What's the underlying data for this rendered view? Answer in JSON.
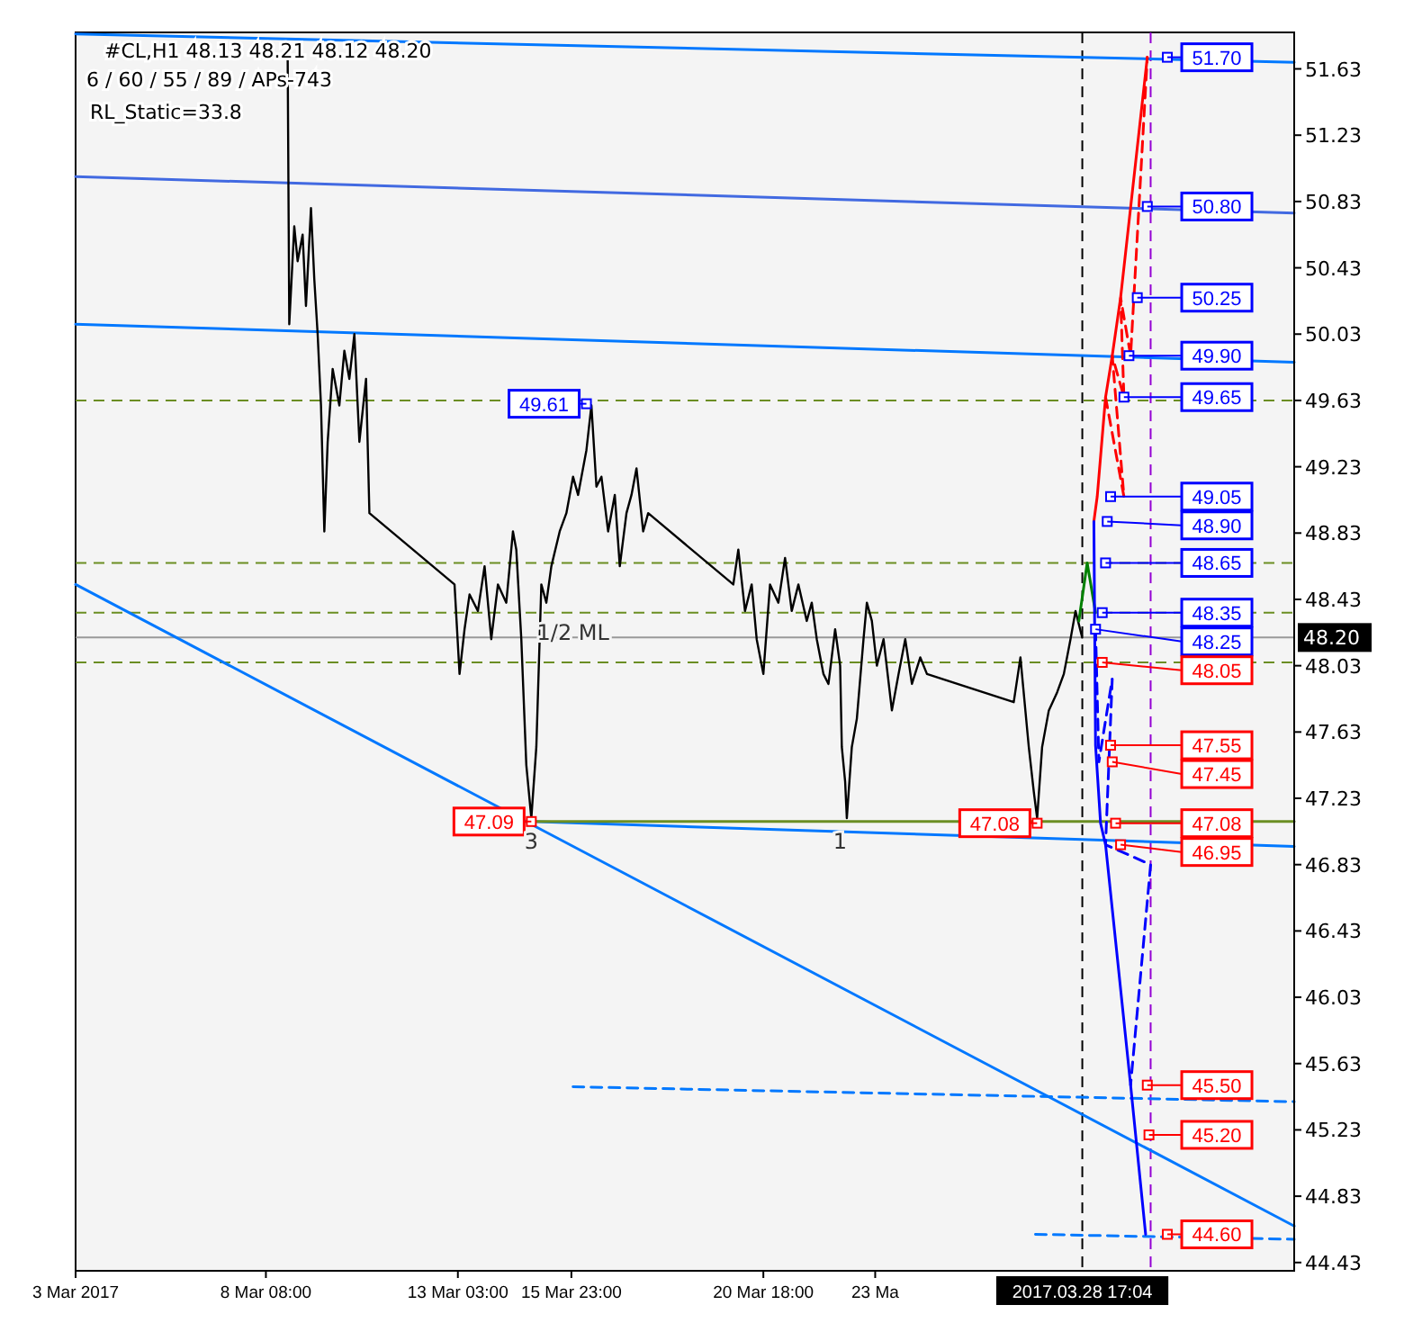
{
  "chart_data": {
    "type": "line",
    "title": "#CL,H1  48.13 48.21 48.12 48.20",
    "subtitle": "6 / 60 / 55 / 89 / APs-743",
    "annotations": [
      "RL_Static=33.8",
      {
        "text": "1/2 ML",
        "x": "2017-03-16T00:00",
        "y": 48.35
      },
      {
        "text": "3",
        "x": "2017-03-14T23:00",
        "y": 47.09
      },
      {
        "text": "1",
        "x": "2017-03-22T16:00",
        "y": 47.09
      }
    ],
    "xlim": [
      "2017-03-03T14:00",
      "2017-04-03T00:00"
    ],
    "ylim": [
      44.38,
      51.85
    ],
    "xticks": [
      {
        "value": "2017-03-03T14:00",
        "label": "3 Mar 2017"
      },
      {
        "value": "2017-03-08T08:00",
        "label": "8 Mar 08:00"
      },
      {
        "value": "2017-03-13T03:00",
        "label": "13 Mar 03:00"
      },
      {
        "value": "2017-03-15T23:00",
        "label": "15 Mar 23:00"
      },
      {
        "value": "2017-03-20T18:00",
        "label": "20 Mar 18:00"
      },
      {
        "value": "2017-03-23T13:00",
        "label": "23 Ma"
      }
    ],
    "yticks": [
      51.63,
      51.23,
      50.83,
      50.43,
      50.03,
      49.63,
      49.23,
      48.83,
      48.43,
      48.03,
      47.63,
      47.23,
      46.83,
      46.43,
      46.03,
      45.63,
      45.23,
      44.83,
      44.43
    ],
    "grid": false,
    "ref_lines": [
      {
        "axis": "y",
        "value": 49.63,
        "color": "#6b8e23",
        "line_style": "dashed"
      },
      {
        "axis": "y",
        "value": 48.65,
        "color": "#6b8e23",
        "line_style": "dashed"
      },
      {
        "axis": "y",
        "value": 48.35,
        "color": "#6b8e23",
        "line_style": "dashed"
      },
      {
        "axis": "y",
        "value": 48.05,
        "color": "#6b8e23",
        "line_style": "dashed"
      },
      {
        "axis": "x",
        "value": "2017-03-28T17:04",
        "label": "2017.03.28 17:04",
        "color": "#000000",
        "line_style": "dashed"
      },
      {
        "axis": "x",
        "value": "2017-03-30T10:00",
        "color": "#9400d3",
        "line_style": "dashed"
      },
      {
        "axis": "y",
        "value": 48.2,
        "label": "48.20",
        "color": "#999999",
        "line_style": "solid"
      }
    ],
    "series": [
      {
        "type": "line",
        "color": "#0078ff",
        "line_style": "solid",
        "x": [
          "2017-03-03T14:00",
          "2017-04-03T00:00"
        ],
        "values": [
          51.84,
          51.67
        ]
      },
      {
        "type": "line",
        "color": "#4169e1",
        "line_style": "solid",
        "x": [
          "2017-03-03T14:00",
          "2017-04-03T00:00"
        ],
        "values": [
          50.98,
          50.76
        ]
      },
      {
        "type": "line",
        "color": "#0078ff",
        "line_style": "solid",
        "x": [
          "2017-03-03T14:00",
          "2017-04-03T00:00"
        ],
        "values": [
          50.09,
          49.86
        ]
      },
      {
        "type": "line",
        "color": "#0078ff",
        "line_style": "solid",
        "x": [
          "2017-03-14T23:00",
          "2017-04-03T00:00"
        ],
        "values": [
          47.09,
          46.94
        ]
      },
      {
        "type": "line",
        "color": "#6b8e23",
        "line_style": "solid",
        "x": [
          "2017-03-14T23:00",
          "2017-04-03T00:00"
        ],
        "values": [
          47.09,
          47.09
        ]
      },
      {
        "type": "line",
        "color": "#0078ff",
        "line_style": "solid",
        "x": [
          "2017-03-03T14:00",
          "2017-04-03T00:00"
        ],
        "values": [
          48.52,
          44.65
        ]
      },
      {
        "type": "line",
        "color": "#0078ff",
        "line_style": "dashed",
        "x": [
          "2017-03-16T00:00",
          "2017-04-03T00:00"
        ],
        "values": [
          45.49,
          45.4
        ]
      },
      {
        "type": "line",
        "color": "#0078ff",
        "line_style": "dashed",
        "x": [
          "2017-03-27T13:00",
          "2017-04-03T00:00"
        ],
        "values": [
          44.6,
          44.57
        ]
      },
      {
        "type": "line",
        "color": "#000000",
        "line_style": "solid",
        "x": [
          "2017-03-08T21:00",
          "2017-03-08T22:00",
          "2017-03-09T01:00",
          "2017-03-09T03:00",
          "2017-03-09T06:00",
          "2017-03-09T08:00",
          "2017-03-09T11:00",
          "2017-03-09T13:00",
          "2017-03-09T15:00",
          "2017-03-09T17:00",
          "2017-03-09T19:00",
          "2017-03-09T21:00",
          "2017-03-10T00:00",
          "2017-03-10T04:00",
          "2017-03-10T07:00",
          "2017-03-10T10:00",
          "2017-03-10T13:00",
          "2017-03-10T16:00",
          "2017-03-10T20:00",
          "2017-03-10T22:00",
          "2017-03-13T01:00",
          "2017-03-13T04:00",
          "2017-03-13T07:00",
          "2017-03-13T10:00",
          "2017-03-13T15:00",
          "2017-03-13T19:00",
          "2017-03-13T23:00",
          "2017-03-14T03:00",
          "2017-03-14T08:00",
          "2017-03-14T12:00",
          "2017-03-14T14:00",
          "2017-03-14T17:00",
          "2017-03-14T20:00",
          "2017-03-14T23:00",
          "2017-03-15T02:00",
          "2017-03-15T05:00",
          "2017-03-15T08:00",
          "2017-03-15T11:00",
          "2017-03-15T16:00",
          "2017-03-15T20:00",
          "2017-03-16T00:00",
          "2017-03-16T03:00",
          "2017-03-16T08:00",
          "2017-03-16T11:00",
          "2017-03-16T14:00",
          "2017-03-16T17:00",
          "2017-03-16T21:00",
          "2017-03-17T01:00",
          "2017-03-17T04:00",
          "2017-03-17T08:00",
          "2017-03-17T11:00",
          "2017-03-17T14:00",
          "2017-03-17T18:00",
          "2017-03-17T21:00",
          "2017-03-20T00:00",
          "2017-03-20T03:00",
          "2017-03-20T07:00",
          "2017-03-20T11:00",
          "2017-03-20T14:00",
          "2017-03-20T18:00",
          "2017-03-20T22:00",
          "2017-03-21T03:00",
          "2017-03-21T07:00",
          "2017-03-21T11:00",
          "2017-03-21T15:00",
          "2017-03-21T20:00",
          "2017-03-21T23:00",
          "2017-03-22T02:00",
          "2017-03-22T06:00",
          "2017-03-22T09:00",
          "2017-03-22T13:00",
          "2017-03-22T16:00",
          "2017-03-22T17:00",
          "2017-03-22T19:00",
          "2017-03-22T20:00",
          "2017-03-22T23:00",
          "2017-03-23T02:00",
          "2017-03-23T06:00",
          "2017-03-23T08:00",
          "2017-03-23T11:00",
          "2017-03-23T14:00",
          "2017-03-23T18:00",
          "2017-03-23T23:00",
          "2017-03-24T03:00",
          "2017-03-24T07:00",
          "2017-03-24T11:00",
          "2017-03-24T16:00",
          "2017-03-24T20:00",
          "2017-03-27T00:00",
          "2017-03-27T04:00",
          "2017-03-27T09:00",
          "2017-03-27T12:00",
          "2017-03-27T14:00",
          "2017-03-27T17:00",
          "2017-03-27T21:00",
          "2017-03-28T02:00",
          "2017-03-28T06:00",
          "2017-03-28T10:00",
          "2017-03-28T13:00",
          "2017-03-28T17:00"
        ],
        "values": [
          51.77,
          50.09,
          50.68,
          50.47,
          50.63,
          50.2,
          50.79,
          50.36,
          50.03,
          49.6,
          48.84,
          49.38,
          49.82,
          49.6,
          49.93,
          49.76,
          50.03,
          49.38,
          49.76,
          48.95,
          48.52,
          47.98,
          48.25,
          48.46,
          48.36,
          48.63,
          48.19,
          48.52,
          48.41,
          48.84,
          48.73,
          48.19,
          47.43,
          47.11,
          47.54,
          48.52,
          48.41,
          48.63,
          48.84,
          48.95,
          49.17,
          49.06,
          49.33,
          49.6,
          49.11,
          49.17,
          48.84,
          49.06,
          48.63,
          48.95,
          49.06,
          49.22,
          48.84,
          48.95,
          48.52,
          48.73,
          48.36,
          48.52,
          48.19,
          47.98,
          48.52,
          48.41,
          48.68,
          48.36,
          48.52,
          48.3,
          48.41,
          48.19,
          47.98,
          47.92,
          48.25,
          48.03,
          47.54,
          47.33,
          47.11,
          47.54,
          47.71,
          48.19,
          48.41,
          48.3,
          48.03,
          48.19,
          47.76,
          47.98,
          48.19,
          47.92,
          48.08,
          47.98,
          47.81,
          48.08,
          47.54,
          47.27,
          47.11,
          47.54,
          47.76,
          47.87,
          47.98,
          48.19,
          48.36,
          48.2
        ]
      },
      {
        "type": "line",
        "color": "#008000",
        "line_style": "solid",
        "x": [
          "2017-03-28T15:00",
          "2017-03-28T20:00",
          "2017-03-29T01:00"
        ],
        "values": [
          48.3,
          48.65,
          48.35
        ]
      },
      {
        "type": "line",
        "color": "#ff0000",
        "line_style": "solid",
        "x": [
          "2017-03-29T00:00",
          "2017-03-29T02:00",
          "2017-03-29T07:00",
          "2017-03-29T11:00",
          "2017-03-29T16:00",
          "2017-03-30T08:00"
        ],
        "values": [
          48.9,
          49.05,
          49.65,
          49.9,
          50.25,
          51.7
        ]
      },
      {
        "type": "line",
        "color": "#ff0000",
        "line_style": "dashed",
        "x": [
          "2017-03-29T07:00",
          "2017-03-29T18:00",
          "2017-03-29T11:00",
          "2017-03-29T18:00",
          "2017-03-29T16:00",
          "2017-03-29T22:00",
          "2017-03-30T08:00"
        ],
        "values": [
          49.65,
          49.05,
          49.9,
          49.65,
          50.25,
          49.9,
          51.7
        ]
      },
      {
        "type": "line",
        "color": "#0000ff",
        "line_style": "solid",
        "x": [
          "2017-03-29T00:00",
          "2017-03-29T01:00",
          "2017-03-29T04:00",
          "2017-03-29T07:00",
          "2017-03-29T22:00",
          "2017-03-30T01:00",
          "2017-03-30T07:00"
        ],
        "values": [
          48.9,
          47.55,
          47.08,
          46.95,
          45.5,
          45.2,
          44.6
        ]
      },
      {
        "type": "line",
        "color": "#0000ff",
        "line_style": "dashed",
        "x": [
          "2017-03-29T01:00",
          "2017-03-29T03:00",
          "2017-03-29T11:00",
          "2017-03-29T07:00",
          "2017-03-30T10:00",
          "2017-03-29T22:00"
        ],
        "values": [
          48.25,
          47.45,
          47.95,
          46.95,
          46.83,
          45.5
        ]
      },
      {
        "type": "scatter",
        "color": "#0000ff",
        "marker": "square",
        "x": [
          "2017-03-30T20:00",
          "2017-03-30T08:00",
          "2017-03-30T02:00",
          "2017-03-29T21:00",
          "2017-03-29T18:00",
          "2017-03-29T10:00",
          "2017-03-29T08:00",
          "2017-03-29T07:00",
          "2017-03-29T05:00",
          "2017-03-29T01:00",
          "2017-03-16T08:00"
        ],
        "values": [
          51.7,
          50.8,
          50.25,
          49.9,
          49.65,
          49.05,
          48.9,
          48.65,
          48.35,
          48.25,
          49.61
        ],
        "value_labels": [
          "51.70",
          "50.80",
          "50.25",
          "49.90",
          "49.65",
          "49.05",
          "48.90",
          "48.65",
          "48.35",
          "48.25",
          "49.61"
        ]
      },
      {
        "type": "scatter",
        "color": "#ff0000",
        "marker": "square",
        "x": [
          "2017-03-29T05:00",
          "2017-03-29T10:00",
          "2017-03-29T11:00",
          "2017-03-29T13:00",
          "2017-03-29T16:00",
          "2017-03-30T08:00",
          "2017-03-30T09:00",
          "2017-03-30T20:00",
          "2017-03-14T23:00",
          "2017-03-27T14:00"
        ],
        "values": [
          48.05,
          47.55,
          47.45,
          47.08,
          46.95,
          45.5,
          45.2,
          44.6,
          47.09,
          47.08
        ],
        "value_labels": [
          "48.05",
          "47.55",
          "47.45",
          "47.08",
          "46.95",
          "45.50",
          "45.20",
          "44.60",
          "47.09",
          "47.08"
        ]
      }
    ]
  }
}
